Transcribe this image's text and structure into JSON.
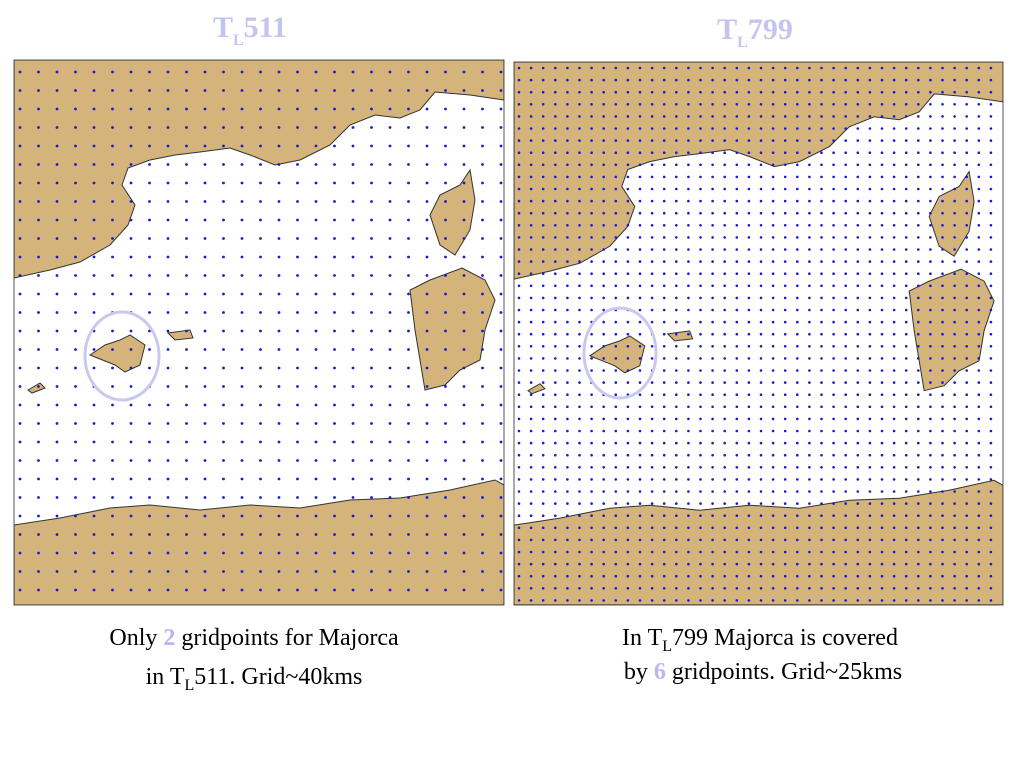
{
  "panels": [
    {
      "title": {
        "base": "T",
        "sub": "L",
        "num": "511"
      },
      "caption": [
        [
          "Only ",
          "2",
          " gridpoints for Majorca"
        ],
        [
          "in T",
          "L",
          "511. Grid~40kms"
        ]
      ]
    },
    {
      "title": {
        "base": "T",
        "sub": "L",
        "num": "799"
      },
      "caption": [
        [
          "In T",
          "L",
          "799 Majorca is covered"
        ],
        [
          "by ",
          "6",
          " gridpoints. Grid~25kms"
        ]
      ]
    }
  ]
}
